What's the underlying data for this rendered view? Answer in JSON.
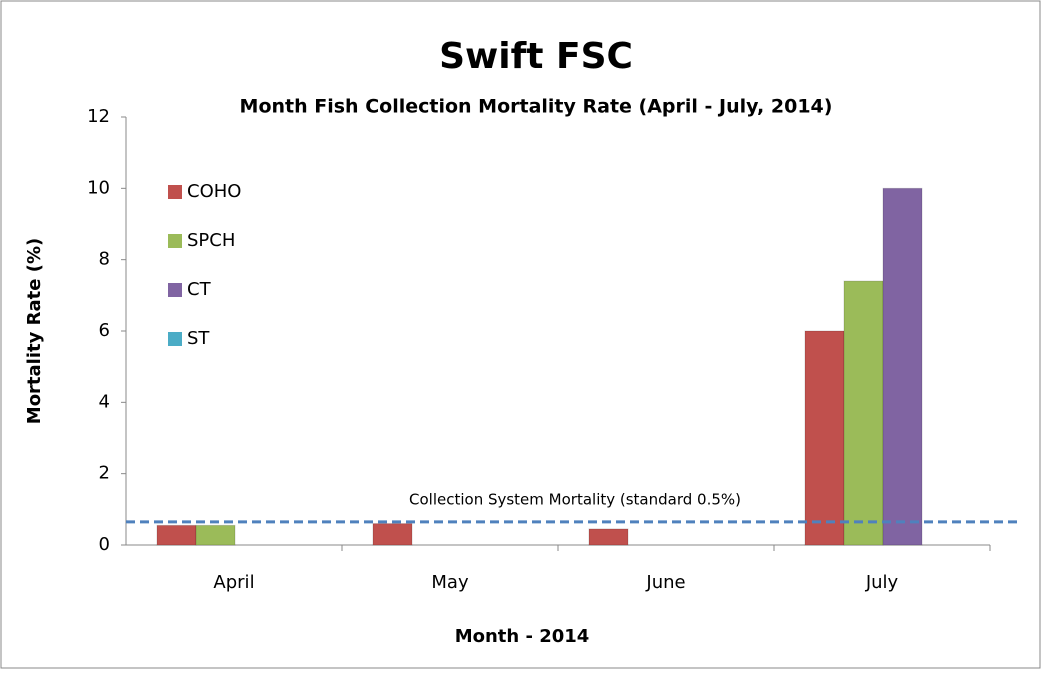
{
  "chart_data": {
    "type": "bar",
    "title": "Swift FSC",
    "subtitle": "Month Fish Collection Mortality Rate (April - July, 2014)",
    "x_label": "Month - 2014",
    "y_label": "Mortality Rate (%)",
    "categories": [
      "April",
      "May",
      "June",
      "July"
    ],
    "series": [
      {
        "name": "COHO",
        "color": "#c0504d",
        "values": [
          0.55,
          0.6,
          0.45,
          6.0
        ]
      },
      {
        "name": "SPCH",
        "color": "#9bbb59",
        "values": [
          0.55,
          0,
          0,
          7.4
        ]
      },
      {
        "name": "CT",
        "color": "#8064a2",
        "values": [
          0,
          0,
          0,
          10
        ]
      },
      {
        "name": "ST",
        "color": "#4bacc6",
        "values": [
          0,
          0,
          0,
          0
        ]
      }
    ],
    "reference_line": {
      "value": 0.65,
      "label": "Collection System Mortality (standard 0.5%)",
      "color": "#4f81bd"
    },
    "ylim": [
      0,
      12
    ],
    "yticks": [
      0,
      2,
      4,
      6,
      8,
      10,
      12
    ],
    "legend": "upper left",
    "grid": false
  }
}
